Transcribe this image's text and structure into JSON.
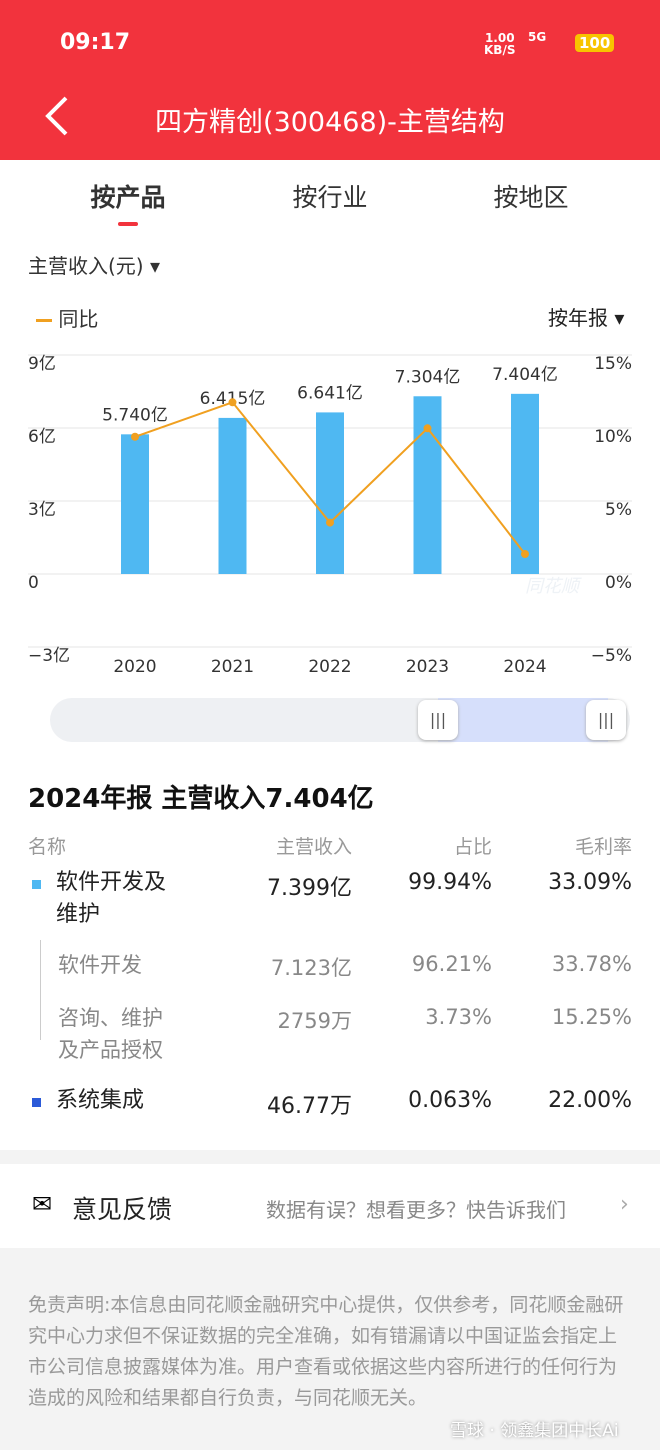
{
  "status_bar": {
    "time": "09:17",
    "net_speed": "1.00",
    "net_unit": "KB/S",
    "signal": "5G",
    "battery": "100"
  },
  "header": {
    "title": "四方精创(300468)-主营结构"
  },
  "tabs": [
    "按产品",
    "按行业",
    "按地区"
  ],
  "metric_selector": "主营收入(元)",
  "period_selector": "按年报",
  "chart_data": {
    "type": "bar",
    "categories": [
      "2020",
      "2021",
      "2022",
      "2023",
      "2024"
    ],
    "values": [
      5.74,
      6.415,
      6.641,
      7.304,
      7.404
    ],
    "value_labels": [
      "5.740亿",
      "6.415亿",
      "6.641亿",
      "7.304亿",
      "7.404亿"
    ],
    "color": "#4fb8f2",
    "ylim": [
      -3,
      9
    ],
    "yticks": [
      {
        "value": -3,
        "label": "−3亿"
      },
      0,
      {
        "value": 3,
        "label": "3亿"
      },
      {
        "value": 6,
        "label": "6亿"
      },
      {
        "value": 9,
        "label": "9亿"
      }
    ],
    "y2lim": [
      -5,
      15
    ],
    "y2ticks": [
      {
        "value": -5,
        "label": "−5%"
      },
      {
        "value": 0,
        "label": "0%"
      },
      {
        "value": 5,
        "label": "5%"
      },
      {
        "value": 10,
        "label": "10%"
      },
      {
        "value": 15,
        "label": "15%"
      }
    ],
    "series": [
      {
        "name": "同比",
        "type": "line",
        "axis": "y2",
        "color": "#f0a020",
        "values": [
          9.4,
          11.76,
          3.52,
          9.98,
          1.37
        ]
      }
    ],
    "grid": true,
    "watermark": "同花顺"
  },
  "table": {
    "title": "2024年报 主营收入7.404亿",
    "headers": [
      "名称",
      "主营收入",
      "占比",
      "毛利率"
    ],
    "rows": [
      [
        "软件开发及维护",
        "7.399亿",
        "99.94%",
        "33.09%"
      ],
      [
        "软件开发",
        "7.123亿",
        "96.21%",
        "33.78%"
      ],
      [
        "咨询、维护及产品授权",
        "2759万",
        "3.73%",
        "15.25%"
      ],
      [
        "系统集成",
        "46.77万",
        "0.063%",
        "22.00%"
      ]
    ]
  },
  "feedback": {
    "title": "意见反馈",
    "prompt": "数据有误？想看更多？快告诉我们"
  },
  "disclaimer": "免责声明:本信息由同花顺金融研究中心提供，仅供参考，同花顺金融研究中心力求但不保证数据的完全准确，如有错漏请以中国证监会指定上市公司信息披露媒体为准。用户查看或依据这些内容所进行的任何行为造成的风险和结果都自行负责，与同花顺无关。",
  "watermark": "雪球 · 领鑫集团中长Ai"
}
